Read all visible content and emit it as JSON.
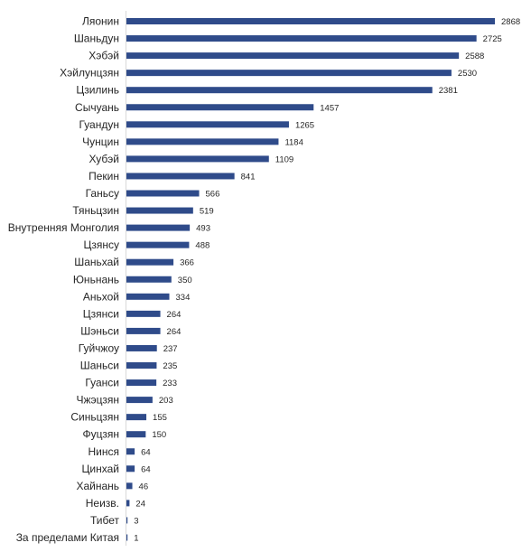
{
  "chart_data": {
    "type": "bar",
    "orientation": "horizontal",
    "title": "",
    "xlabel": "",
    "ylabel": "",
    "grid": false,
    "legend": "none",
    "bar_color": "#2f4b8a",
    "xlim": [
      0,
      2868
    ],
    "categories": [
      "Ляонин",
      "Шаньдун",
      "Хэбэй",
      "Хэйлунцзян",
      "Цзилинь",
      "Сычуань",
      "Гуандун",
      "Чунцин",
      "Хубэй",
      "Пекин",
      "Ганьсу",
      "Тяньцзин",
      "Внутренняя Монголия",
      "Цзянсу",
      "Шаньхай",
      "Юньнань",
      "Аньхой",
      "Цзянси",
      "Шэньси",
      "Гуйчжоу",
      "Шаньси",
      "Гуанси",
      "Чжэцзян",
      "Синьцзян",
      "Фуцзян",
      "Нинся",
      "Цинхай",
      "Хайнань",
      "Неизв.",
      "Тибет",
      "За пределами Китая"
    ],
    "values": [
      2868,
      2725,
      2588,
      2530,
      2381,
      1457,
      1265,
      1184,
      1109,
      841,
      566,
      519,
      493,
      488,
      366,
      350,
      334,
      264,
      264,
      237,
      235,
      233,
      203,
      155,
      150,
      64,
      64,
      46,
      24,
      3,
      1
    ]
  }
}
